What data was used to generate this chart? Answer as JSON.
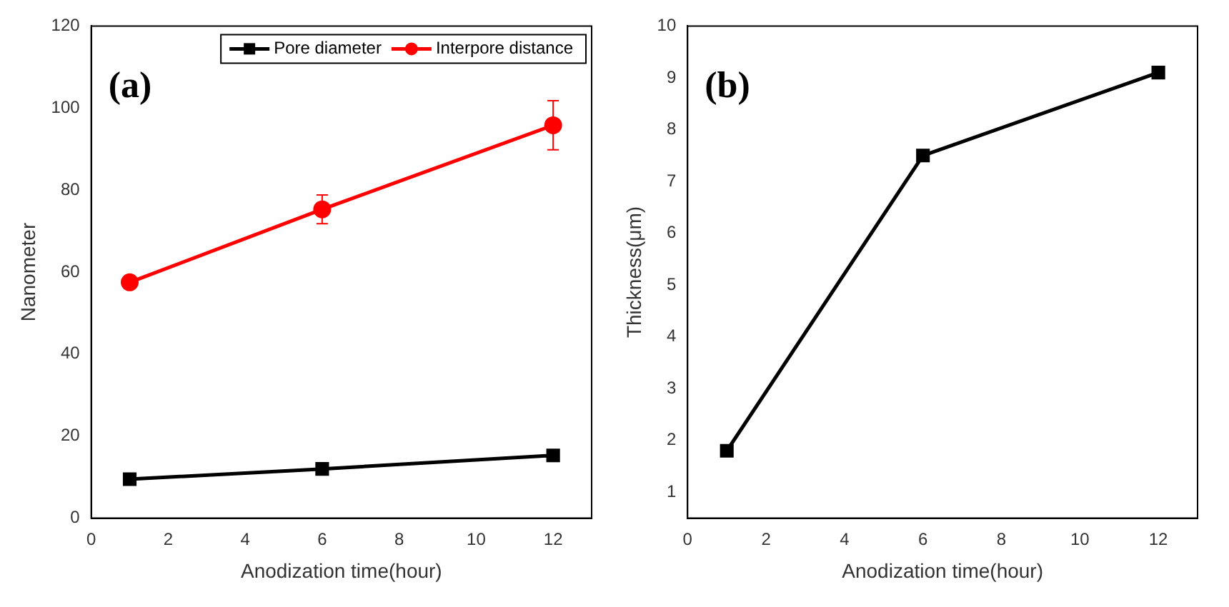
{
  "chart_data": [
    {
      "type": "line",
      "xlabel": "Anodization time(hour)",
      "ylabel": "Nanometer",
      "x": [
        1,
        6,
        12
      ],
      "xlim": [
        0,
        13
      ],
      "xticks": [
        0,
        2,
        4,
        6,
        8,
        10,
        12
      ],
      "ylim": [
        0,
        120
      ],
      "yticks": [
        0,
        20,
        40,
        60,
        80,
        100,
        120
      ],
      "grid": false,
      "legend": "top right",
      "annotations": [
        "(a)"
      ],
      "series": [
        {
          "name": "Pore diameter",
          "color": "#000000",
          "values": [
            9.5,
            12,
            15.3
          ],
          "marker": "square"
        },
        {
          "name": "Interpore distance",
          "color": "#ff0000",
          "values": [
            57.5,
            75.3,
            95.8
          ],
          "marker": "circle",
          "errors": [
            null,
            3.5,
            6
          ]
        }
      ]
    },
    {
      "type": "line",
      "xlabel": "Anodization time(hour)",
      "ylabel": "Thickness(μm)",
      "x": [
        1,
        6,
        12
      ],
      "xlim": [
        0,
        13
      ],
      "xticks": [
        0,
        2,
        4,
        6,
        8,
        10,
        12
      ],
      "ylim": [
        0.5,
        10
      ],
      "yticks": [
        1,
        2,
        3,
        4,
        5,
        6,
        7,
        8,
        9,
        10
      ],
      "grid": false,
      "annotations": [
        "(b)"
      ],
      "series": [
        {
          "color": "#000000",
          "values": [
            1.8,
            7.5,
            9.1
          ],
          "marker": "square"
        }
      ]
    }
  ]
}
